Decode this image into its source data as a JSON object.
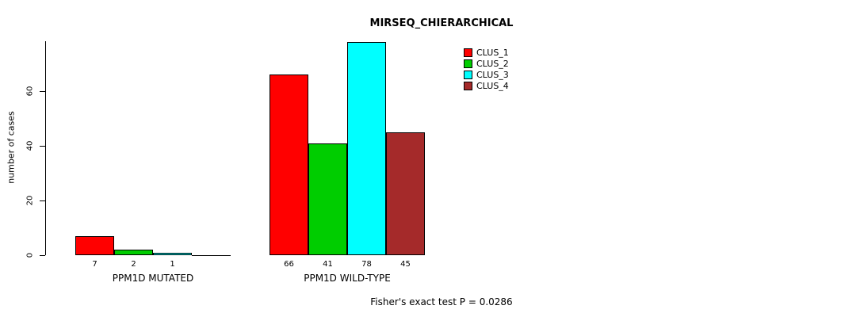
{
  "chart_data": {
    "type": "bar",
    "title": "MIRSEQ_CHIERARCHICAL",
    "xlabel": "",
    "ylabel": "number of cases",
    "ylim": [
      0,
      80
    ],
    "yticks": [
      0,
      20,
      40,
      60
    ],
    "grid": false,
    "legend_position": "top-right",
    "groups": [
      "PPM1D MUTATED",
      "PPM1D WILD-TYPE"
    ],
    "series": [
      {
        "name": "CLUS_1",
        "color": "#FF0000",
        "values": [
          7,
          66
        ]
      },
      {
        "name": "CLUS_2",
        "color": "#00CD00",
        "values": [
          2,
          41
        ]
      },
      {
        "name": "CLUS_3",
        "color": "#00FFFF",
        "values": [
          1,
          78
        ]
      },
      {
        "name": "CLUS_4",
        "color": "#A52A2A",
        "values": [
          0,
          45
        ]
      }
    ],
    "bar_value_labels": [
      [
        "7",
        "2",
        "1",
        ""
      ],
      [
        "66",
        "41",
        "78",
        "45"
      ]
    ],
    "annotation": "Fisher's exact test P = 0.0286"
  }
}
